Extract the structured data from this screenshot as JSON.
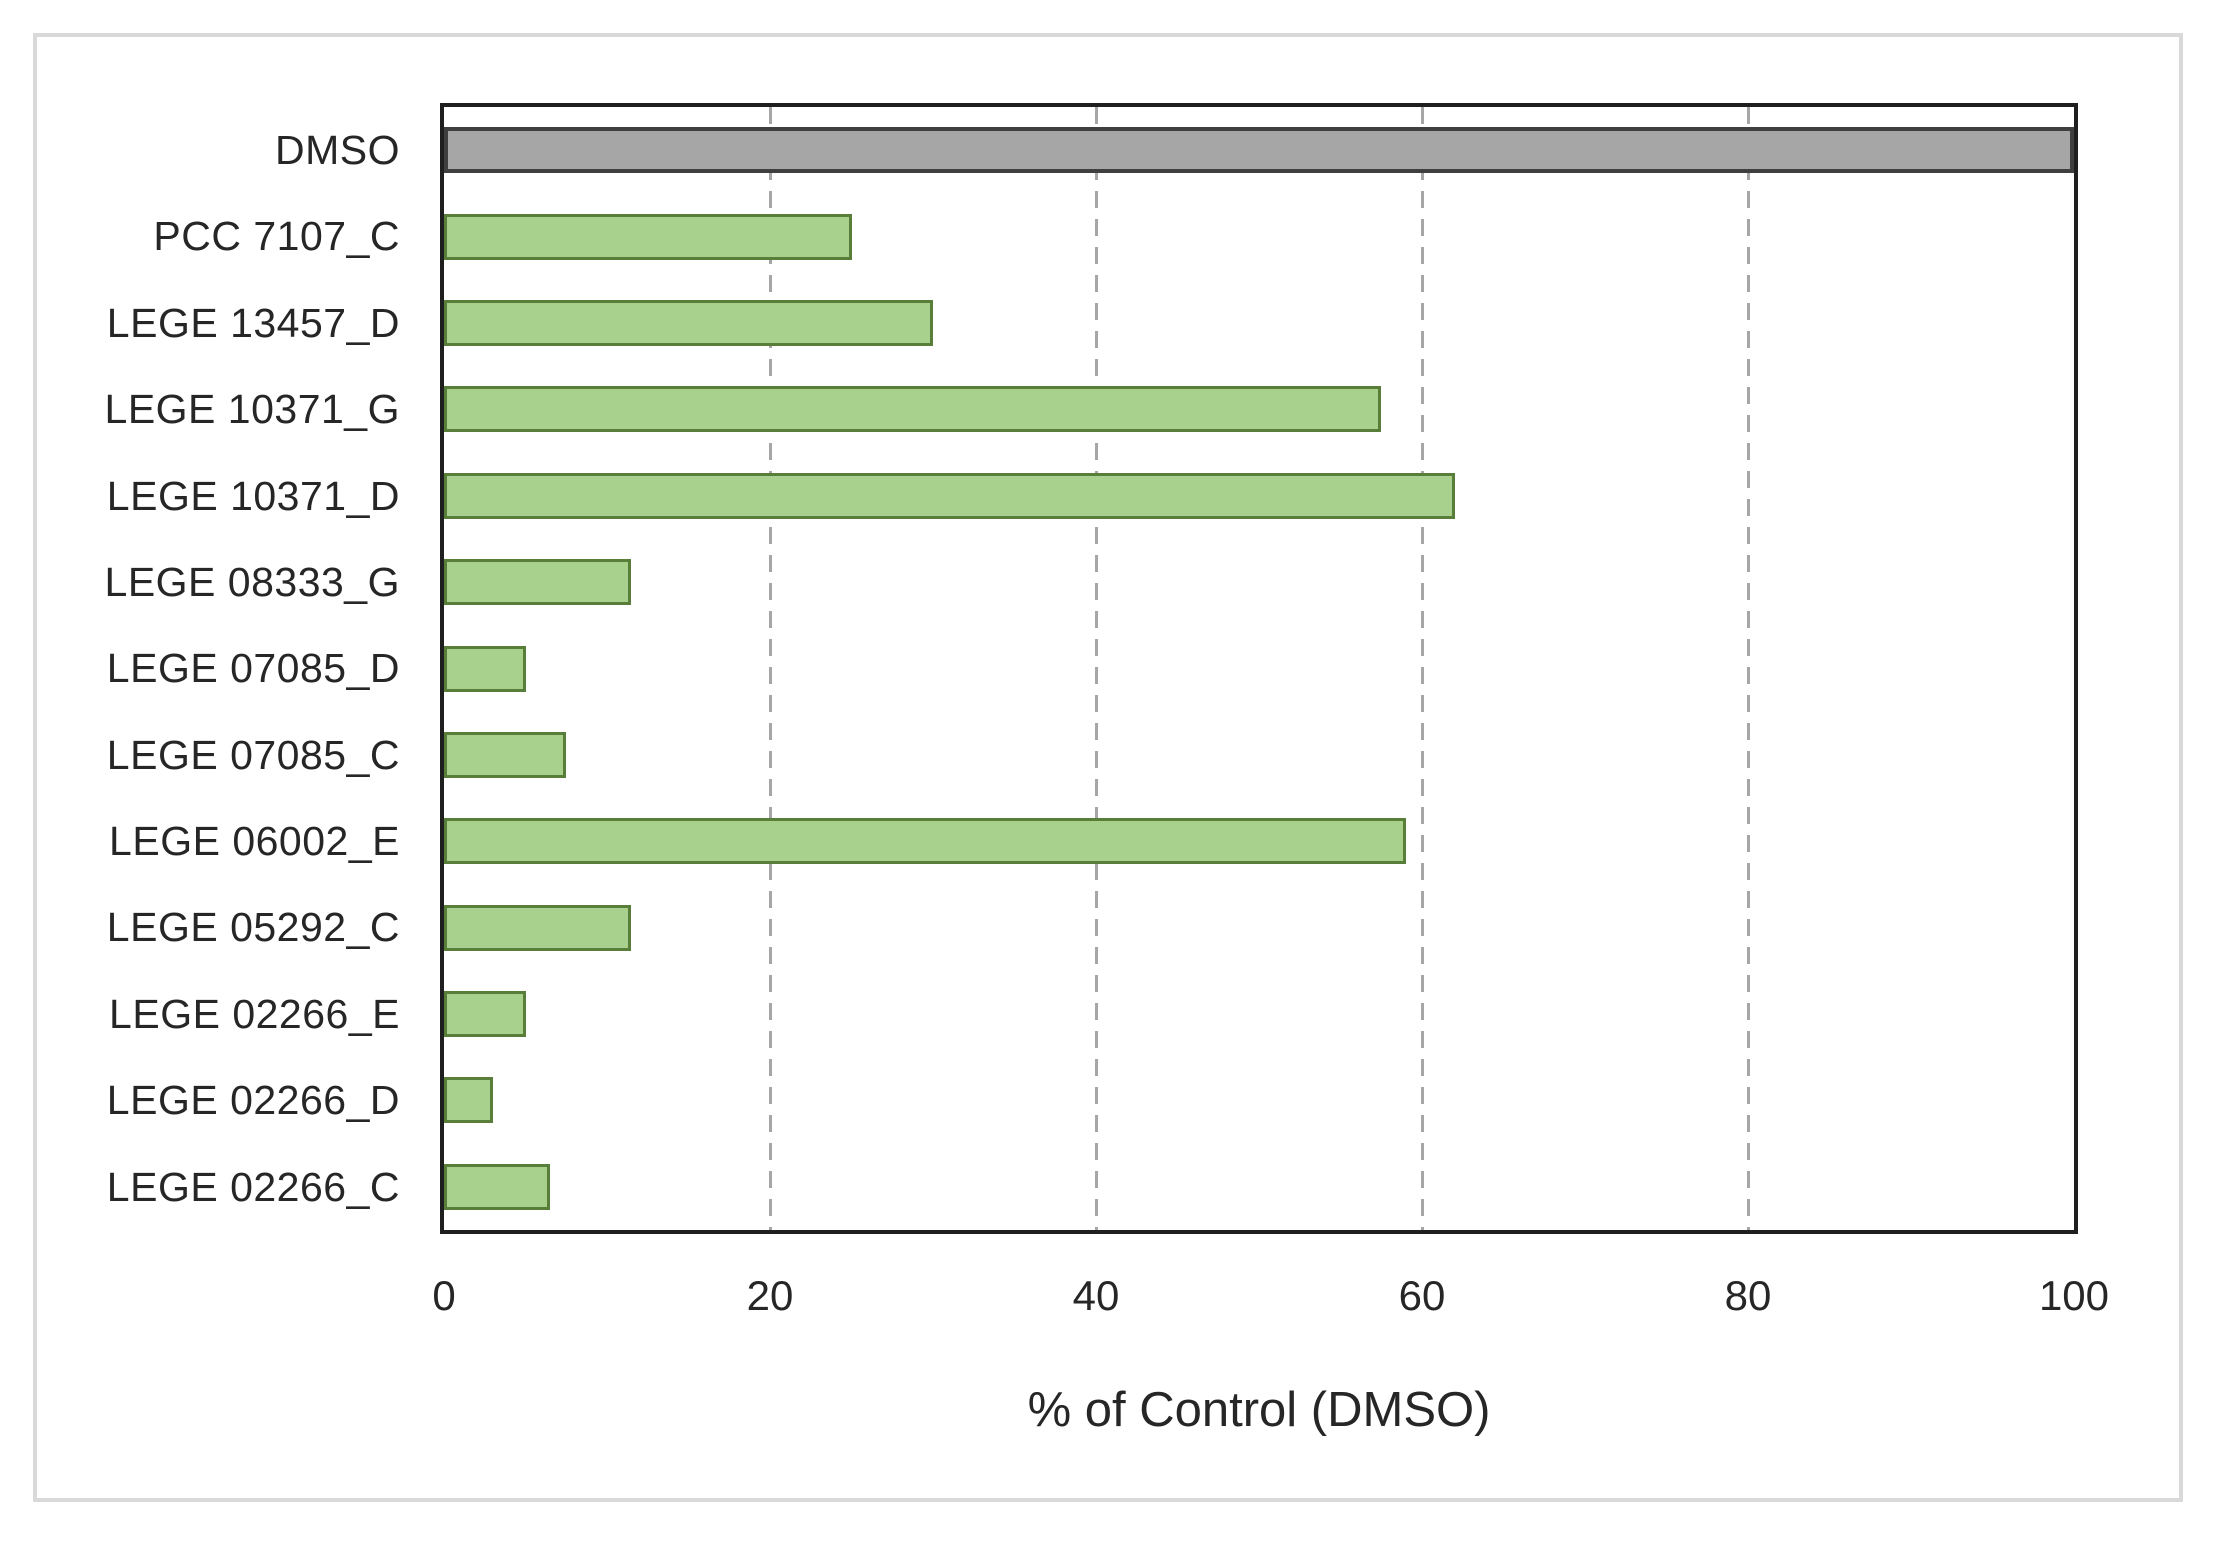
{
  "chart_data": {
    "type": "bar",
    "orientation": "horizontal",
    "title": "",
    "xlabel": "% of Control (DMSO)",
    "ylabel": "",
    "xlim": [
      0,
      100
    ],
    "xticks": [
      0,
      20,
      40,
      60,
      80,
      100
    ],
    "grid": "vertical dashed gridlines at 20, 40, 60, 80",
    "legend": false,
    "categories": [
      "DMSO",
      "PCC 7107_C",
      "LEGE 13457_D",
      "LEGE 10371_G",
      "LEGE 10371_D",
      "LEGE 08333_G",
      "LEGE 07085_D",
      "LEGE 07085_C",
      "LEGE 06002_E",
      "LEGE 05292_C",
      "LEGE 02266_E",
      "LEGE 02266_D",
      "LEGE 02266_C"
    ],
    "values": [
      100,
      25,
      30,
      57.5,
      62,
      11.5,
      5,
      7.5,
      59,
      11.5,
      5,
      3,
      6.5
    ],
    "control_category": "DMSO",
    "colors": {
      "bar_fill": "#a9d18e",
      "bar_border": "#587e3a",
      "control_fill": "#a6a6a6",
      "control_border": "#3f3f3f",
      "grid_color": "#a6a6a6",
      "axis_color": "#1f1f1f",
      "text_color": "#262626",
      "frame_color": "#d9d9d9"
    }
  }
}
